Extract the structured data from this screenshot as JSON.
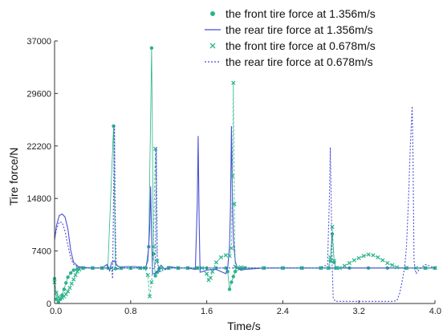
{
  "chart_data": {
    "type": "line",
    "title": "",
    "xlabel": "Time/s",
    "ylabel": "Tire force/N",
    "xlim": [
      0.0,
      4.0
    ],
    "ylim": [
      0,
      37000
    ],
    "xticks": [
      "0.0",
      "0.8",
      "1.6",
      "2.4",
      "3.2",
      "4.0"
    ],
    "yticks": [
      "0",
      "7400",
      "14800",
      "22200",
      "29600",
      "37000"
    ],
    "legend_position": "top-right",
    "colors": {
      "green": "#2ab48a",
      "blue": "#4b4fd6"
    },
    "series": [
      {
        "name": "the front tire force at 1.356m/s",
        "marker": "dot",
        "style": "markers",
        "color": "#2ab48a",
        "points": [
          [
            0.0,
            3500
          ],
          [
            0.02,
            600
          ],
          [
            0.04,
            200
          ],
          [
            0.06,
            600
          ],
          [
            0.08,
            1200
          ],
          [
            0.1,
            2000
          ],
          [
            0.12,
            2900
          ],
          [
            0.14,
            3700
          ],
          [
            0.17,
            4300
          ],
          [
            0.2,
            4700
          ],
          [
            0.24,
            4900
          ],
          [
            0.3,
            5000
          ],
          [
            0.4,
            5000
          ],
          [
            0.5,
            5000
          ],
          [
            0.56,
            5000
          ],
          [
            0.62,
            25000
          ],
          [
            0.64,
            4900
          ],
          [
            0.7,
            5000
          ],
          [
            0.8,
            5000
          ],
          [
            0.9,
            5000
          ],
          [
            0.96,
            5000
          ],
          [
            0.99,
            8000
          ],
          [
            1.02,
            36000
          ],
          [
            1.04,
            7000
          ],
          [
            1.06,
            3900
          ],
          [
            1.08,
            4400
          ],
          [
            1.1,
            4900
          ],
          [
            1.2,
            5000
          ],
          [
            1.3,
            5000
          ],
          [
            1.4,
            5000
          ],
          [
            1.5,
            5000
          ],
          [
            1.6,
            5000
          ],
          [
            1.7,
            5000
          ],
          [
            1.8,
            5000
          ],
          [
            1.82,
            4500
          ],
          [
            1.84,
            2000
          ],
          [
            1.86,
            3000
          ],
          [
            1.88,
            3800
          ],
          [
            1.9,
            4500
          ],
          [
            1.96,
            4900
          ],
          [
            2.0,
            5000
          ],
          [
            2.2,
            5000
          ],
          [
            2.4,
            5000
          ],
          [
            2.6,
            5000
          ],
          [
            2.8,
            5000
          ],
          [
            2.88,
            5000
          ],
          [
            2.9,
            6000
          ],
          [
            2.92,
            9800
          ],
          [
            2.94,
            5800
          ],
          [
            2.96,
            5000
          ],
          [
            3.1,
            5000
          ],
          [
            3.3,
            5000
          ],
          [
            3.5,
            5000
          ],
          [
            3.7,
            5000
          ],
          [
            3.9,
            5000
          ],
          [
            4.0,
            5000
          ]
        ]
      },
      {
        "name": "the rear tire force at 1.356m/s",
        "marker": "none",
        "style": "solid",
        "color": "#4b4fd6",
        "points": [
          [
            0.0,
            9000
          ],
          [
            0.02,
            11000
          ],
          [
            0.05,
            12400
          ],
          [
            0.08,
            12600
          ],
          [
            0.11,
            12200
          ],
          [
            0.14,
            10500
          ],
          [
            0.17,
            7500
          ],
          [
            0.2,
            5800
          ],
          [
            0.25,
            5200
          ],
          [
            0.3,
            5100
          ],
          [
            0.4,
            5000
          ],
          [
            0.5,
            5000
          ],
          [
            0.55,
            5500
          ],
          [
            0.58,
            4600
          ],
          [
            0.6,
            5800
          ],
          [
            0.63,
            6000
          ],
          [
            0.66,
            5300
          ],
          [
            0.7,
            5100
          ],
          [
            0.75,
            5200
          ],
          [
            0.85,
            5200
          ],
          [
            0.92,
            5000
          ],
          [
            0.96,
            5200
          ],
          [
            0.98,
            6000
          ],
          [
            1.0,
            10500
          ],
          [
            1.01,
            16500
          ],
          [
            1.02,
            9500
          ],
          [
            1.03,
            4200
          ],
          [
            1.05,
            4200
          ],
          [
            1.08,
            4500
          ],
          [
            1.12,
            5400
          ],
          [
            1.16,
            4800
          ],
          [
            1.2,
            5200
          ],
          [
            1.25,
            5100
          ],
          [
            1.3,
            5000
          ],
          [
            1.4,
            5000
          ],
          [
            1.48,
            4800
          ],
          [
            1.5,
            14000
          ],
          [
            1.51,
            23600
          ],
          [
            1.52,
            12000
          ],
          [
            1.53,
            4400
          ],
          [
            1.56,
            4500
          ],
          [
            1.6,
            4700
          ],
          [
            1.65,
            4800
          ],
          [
            1.7,
            4800
          ],
          [
            1.75,
            4500
          ],
          [
            1.8,
            4200
          ],
          [
            1.82,
            5000
          ],
          [
            1.84,
            8000
          ],
          [
            1.85,
            13500
          ],
          [
            1.86,
            25000
          ],
          [
            1.87,
            15000
          ],
          [
            1.88,
            9000
          ],
          [
            1.9,
            6000
          ],
          [
            1.92,
            5000
          ],
          [
            1.96,
            4700
          ],
          [
            2.0,
            4800
          ],
          [
            2.2,
            5000
          ],
          [
            2.4,
            5000
          ],
          [
            2.6,
            5000
          ],
          [
            2.8,
            5000
          ],
          [
            3.0,
            5000
          ],
          [
            3.2,
            5000
          ],
          [
            3.4,
            5000
          ],
          [
            3.6,
            5000
          ],
          [
            3.8,
            5000
          ],
          [
            4.0,
            5000
          ]
        ]
      },
      {
        "name": "the front tire force at 0.678m/s",
        "marker": "x",
        "style": "markers",
        "color": "#2ab48a",
        "points": [
          [
            0.0,
            3000
          ],
          [
            0.02,
            1500
          ],
          [
            0.04,
            900
          ],
          [
            0.06,
            700
          ],
          [
            0.08,
            800
          ],
          [
            0.1,
            1000
          ],
          [
            0.12,
            1300
          ],
          [
            0.14,
            1700
          ],
          [
            0.16,
            2200
          ],
          [
            0.18,
            2800
          ],
          [
            0.2,
            3400
          ],
          [
            0.22,
            4000
          ],
          [
            0.24,
            4500
          ],
          [
            0.26,
            4800
          ],
          [
            0.3,
            5000
          ],
          [
            0.4,
            5000
          ],
          [
            0.5,
            5000
          ],
          [
            0.6,
            5000
          ],
          [
            0.7,
            5000
          ],
          [
            0.8,
            5000
          ],
          [
            0.9,
            5000
          ],
          [
            0.95,
            5000
          ],
          [
            0.98,
            4000
          ],
          [
            1.0,
            1000
          ],
          [
            1.02,
            3000
          ],
          [
            1.04,
            8000
          ],
          [
            1.06,
            21800
          ],
          [
            1.08,
            6000
          ],
          [
            1.1,
            4700
          ],
          [
            1.12,
            5000
          ],
          [
            1.2,
            5000
          ],
          [
            1.3,
            5000
          ],
          [
            1.4,
            5000
          ],
          [
            1.5,
            5000
          ],
          [
            1.55,
            5000
          ],
          [
            1.6,
            4200
          ],
          [
            1.62,
            3300
          ],
          [
            1.64,
            3600
          ],
          [
            1.66,
            4500
          ],
          [
            1.7,
            5800
          ],
          [
            1.75,
            6500
          ],
          [
            1.8,
            6800
          ],
          [
            1.84,
            6700
          ],
          [
            1.86,
            7800
          ],
          [
            1.87,
            18000
          ],
          [
            1.88,
            31100
          ],
          [
            1.89,
            14000
          ],
          [
            1.9,
            5200
          ],
          [
            1.92,
            5000
          ],
          [
            1.96,
            5100
          ],
          [
            2.0,
            5000
          ],
          [
            2.2,
            5000
          ],
          [
            2.4,
            5000
          ],
          [
            2.6,
            5000
          ],
          [
            2.8,
            5000
          ],
          [
            2.88,
            5000
          ],
          [
            2.9,
            6500
          ],
          [
            2.92,
            10800
          ],
          [
            2.94,
            6000
          ],
          [
            2.96,
            5000
          ],
          [
            3.0,
            5000
          ],
          [
            3.05,
            5300
          ],
          [
            3.1,
            5700
          ],
          [
            3.15,
            6100
          ],
          [
            3.2,
            6400
          ],
          [
            3.25,
            6700
          ],
          [
            3.3,
            6900
          ],
          [
            3.35,
            6800
          ],
          [
            3.4,
            6500
          ],
          [
            3.45,
            6100
          ],
          [
            3.5,
            5700
          ],
          [
            3.55,
            5400
          ],
          [
            3.6,
            5100
          ],
          [
            3.7,
            5000
          ],
          [
            3.8,
            5000
          ],
          [
            3.9,
            5000
          ],
          [
            4.0,
            5000
          ]
        ]
      },
      {
        "name": "the rear tire force at 0.678m/s",
        "marker": "none",
        "style": "dashed",
        "color": "#4b4fd6",
        "points": [
          [
            0.0,
            9000
          ],
          [
            0.02,
            10500
          ],
          [
            0.05,
            11500
          ],
          [
            0.08,
            11400
          ],
          [
            0.11,
            10200
          ],
          [
            0.14,
            8200
          ],
          [
            0.17,
            6400
          ],
          [
            0.2,
            5500
          ],
          [
            0.25,
            5100
          ],
          [
            0.3,
            5000
          ],
          [
            0.5,
            5000
          ],
          [
            0.6,
            5000
          ],
          [
            0.61,
            3500
          ],
          [
            0.62,
            15000
          ],
          [
            0.63,
            25200
          ],
          [
            0.64,
            10000
          ],
          [
            0.65,
            4800
          ],
          [
            0.7,
            5000
          ],
          [
            0.9,
            5000
          ],
          [
            1.0,
            5000
          ],
          [
            1.05,
            4900
          ],
          [
            1.06,
            5500
          ],
          [
            1.07,
            22000
          ],
          [
            1.08,
            6000
          ],
          [
            1.1,
            4500
          ],
          [
            1.15,
            4700
          ],
          [
            1.2,
            5000
          ],
          [
            1.4,
            5000
          ],
          [
            1.6,
            5000
          ],
          [
            1.8,
            5000
          ],
          [
            2.0,
            5000
          ],
          [
            2.4,
            5000
          ],
          [
            2.8,
            5000
          ],
          [
            2.87,
            5500
          ],
          [
            2.89,
            15000
          ],
          [
            2.9,
            22000
          ],
          [
            2.91,
            14000
          ],
          [
            2.92,
            5000
          ],
          [
            2.93,
            800
          ],
          [
            2.95,
            300
          ],
          [
            3.0,
            300
          ],
          [
            3.2,
            300
          ],
          [
            3.4,
            300
          ],
          [
            3.55,
            300
          ],
          [
            3.6,
            400
          ],
          [
            3.63,
            1500
          ],
          [
            3.66,
            3500
          ],
          [
            3.68,
            5000
          ],
          [
            3.7,
            8000
          ],
          [
            3.72,
            14000
          ],
          [
            3.74,
            22000
          ],
          [
            3.76,
            27800
          ],
          [
            3.77,
            20000
          ],
          [
            3.78,
            6000
          ],
          [
            3.8,
            4200
          ],
          [
            3.85,
            5000
          ],
          [
            3.9,
            5500
          ],
          [
            4.0,
            5000
          ]
        ]
      }
    ]
  }
}
